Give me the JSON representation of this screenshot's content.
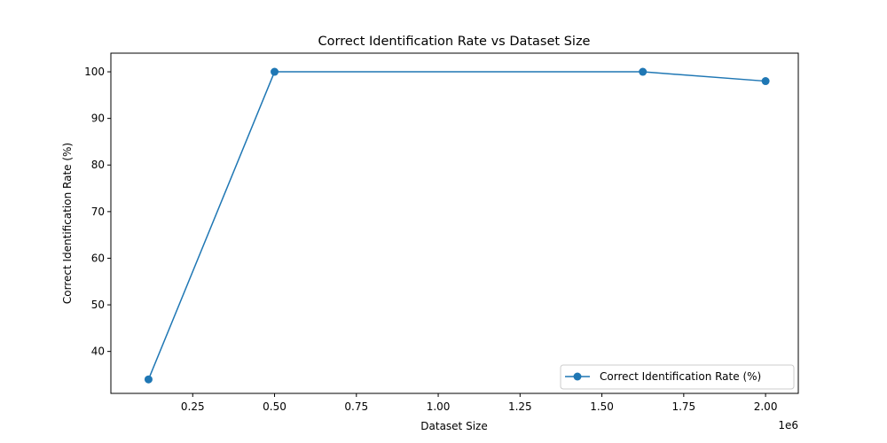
{
  "chart_data": {
    "type": "line",
    "title": "Correct Identification Rate vs Dataset Size",
    "xlabel": "Dataset Size",
    "ylabel": "Correct Identification Rate (%)",
    "x_offset_label": "1e6",
    "xlim": [
      0.0,
      2.1
    ],
    "ylim": [
      31,
      104
    ],
    "x_ticks": [
      0.25,
      0.5,
      0.75,
      1.0,
      1.25,
      1.5,
      1.75,
      2.0
    ],
    "x_tick_labels": [
      "0.25",
      "0.50",
      "0.75",
      "1.00",
      "1.25",
      "1.50",
      "1.75",
      "2.00"
    ],
    "y_ticks": [
      40,
      50,
      60,
      70,
      80,
      90,
      100
    ],
    "y_tick_labels": [
      "40",
      "50",
      "60",
      "70",
      "80",
      "90",
      "100"
    ],
    "grid": false,
    "legend_position": "lower-right",
    "series": [
      {
        "name": "Correct Identification Rate (%)",
        "color": "#1f77b4",
        "marker": "circle",
        "x": [
          0.115,
          0.5,
          1.625,
          2.0
        ],
        "y": [
          34,
          100,
          100,
          98
        ]
      }
    ]
  }
}
